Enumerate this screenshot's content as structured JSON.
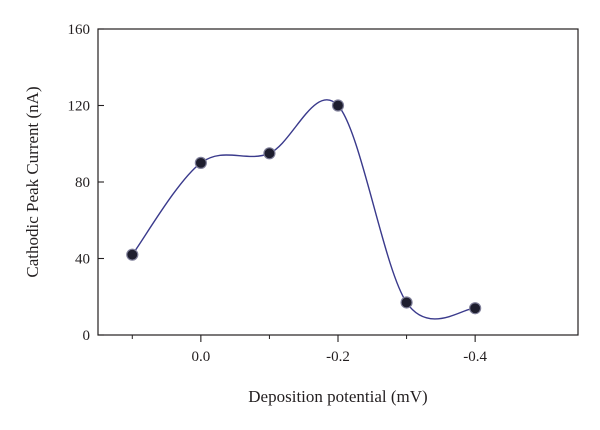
{
  "chart_data": {
    "type": "line",
    "title": "",
    "xlabel": "Deposition potential (mV)",
    "ylabel": "Cathodic Peak Current (nA)",
    "x_axis_reversed": true,
    "xlim": [
      0.15,
      -0.55
    ],
    "ylim": [
      0,
      160
    ],
    "x_ticks": [
      0.0,
      -0.2,
      -0.4
    ],
    "x_tick_labels": [
      "0.0",
      "-0.2",
      "-0.4"
    ],
    "x_minor_ticks": [
      0.1,
      -0.1,
      -0.3
    ],
    "y_ticks": [
      0,
      40,
      80,
      120,
      160
    ],
    "y_tick_labels": [
      "0",
      "40",
      "80",
      "120",
      "160"
    ],
    "grid": false,
    "series": [
      {
        "x": [
          0.1,
          0.0,
          -0.1,
          -0.2,
          -0.3,
          -0.4
        ],
        "y": [
          42,
          90,
          95,
          120,
          17,
          14
        ],
        "line_color": "#3a3a8c",
        "marker_color": "#1e1e2e",
        "smooth": true
      }
    ]
  }
}
